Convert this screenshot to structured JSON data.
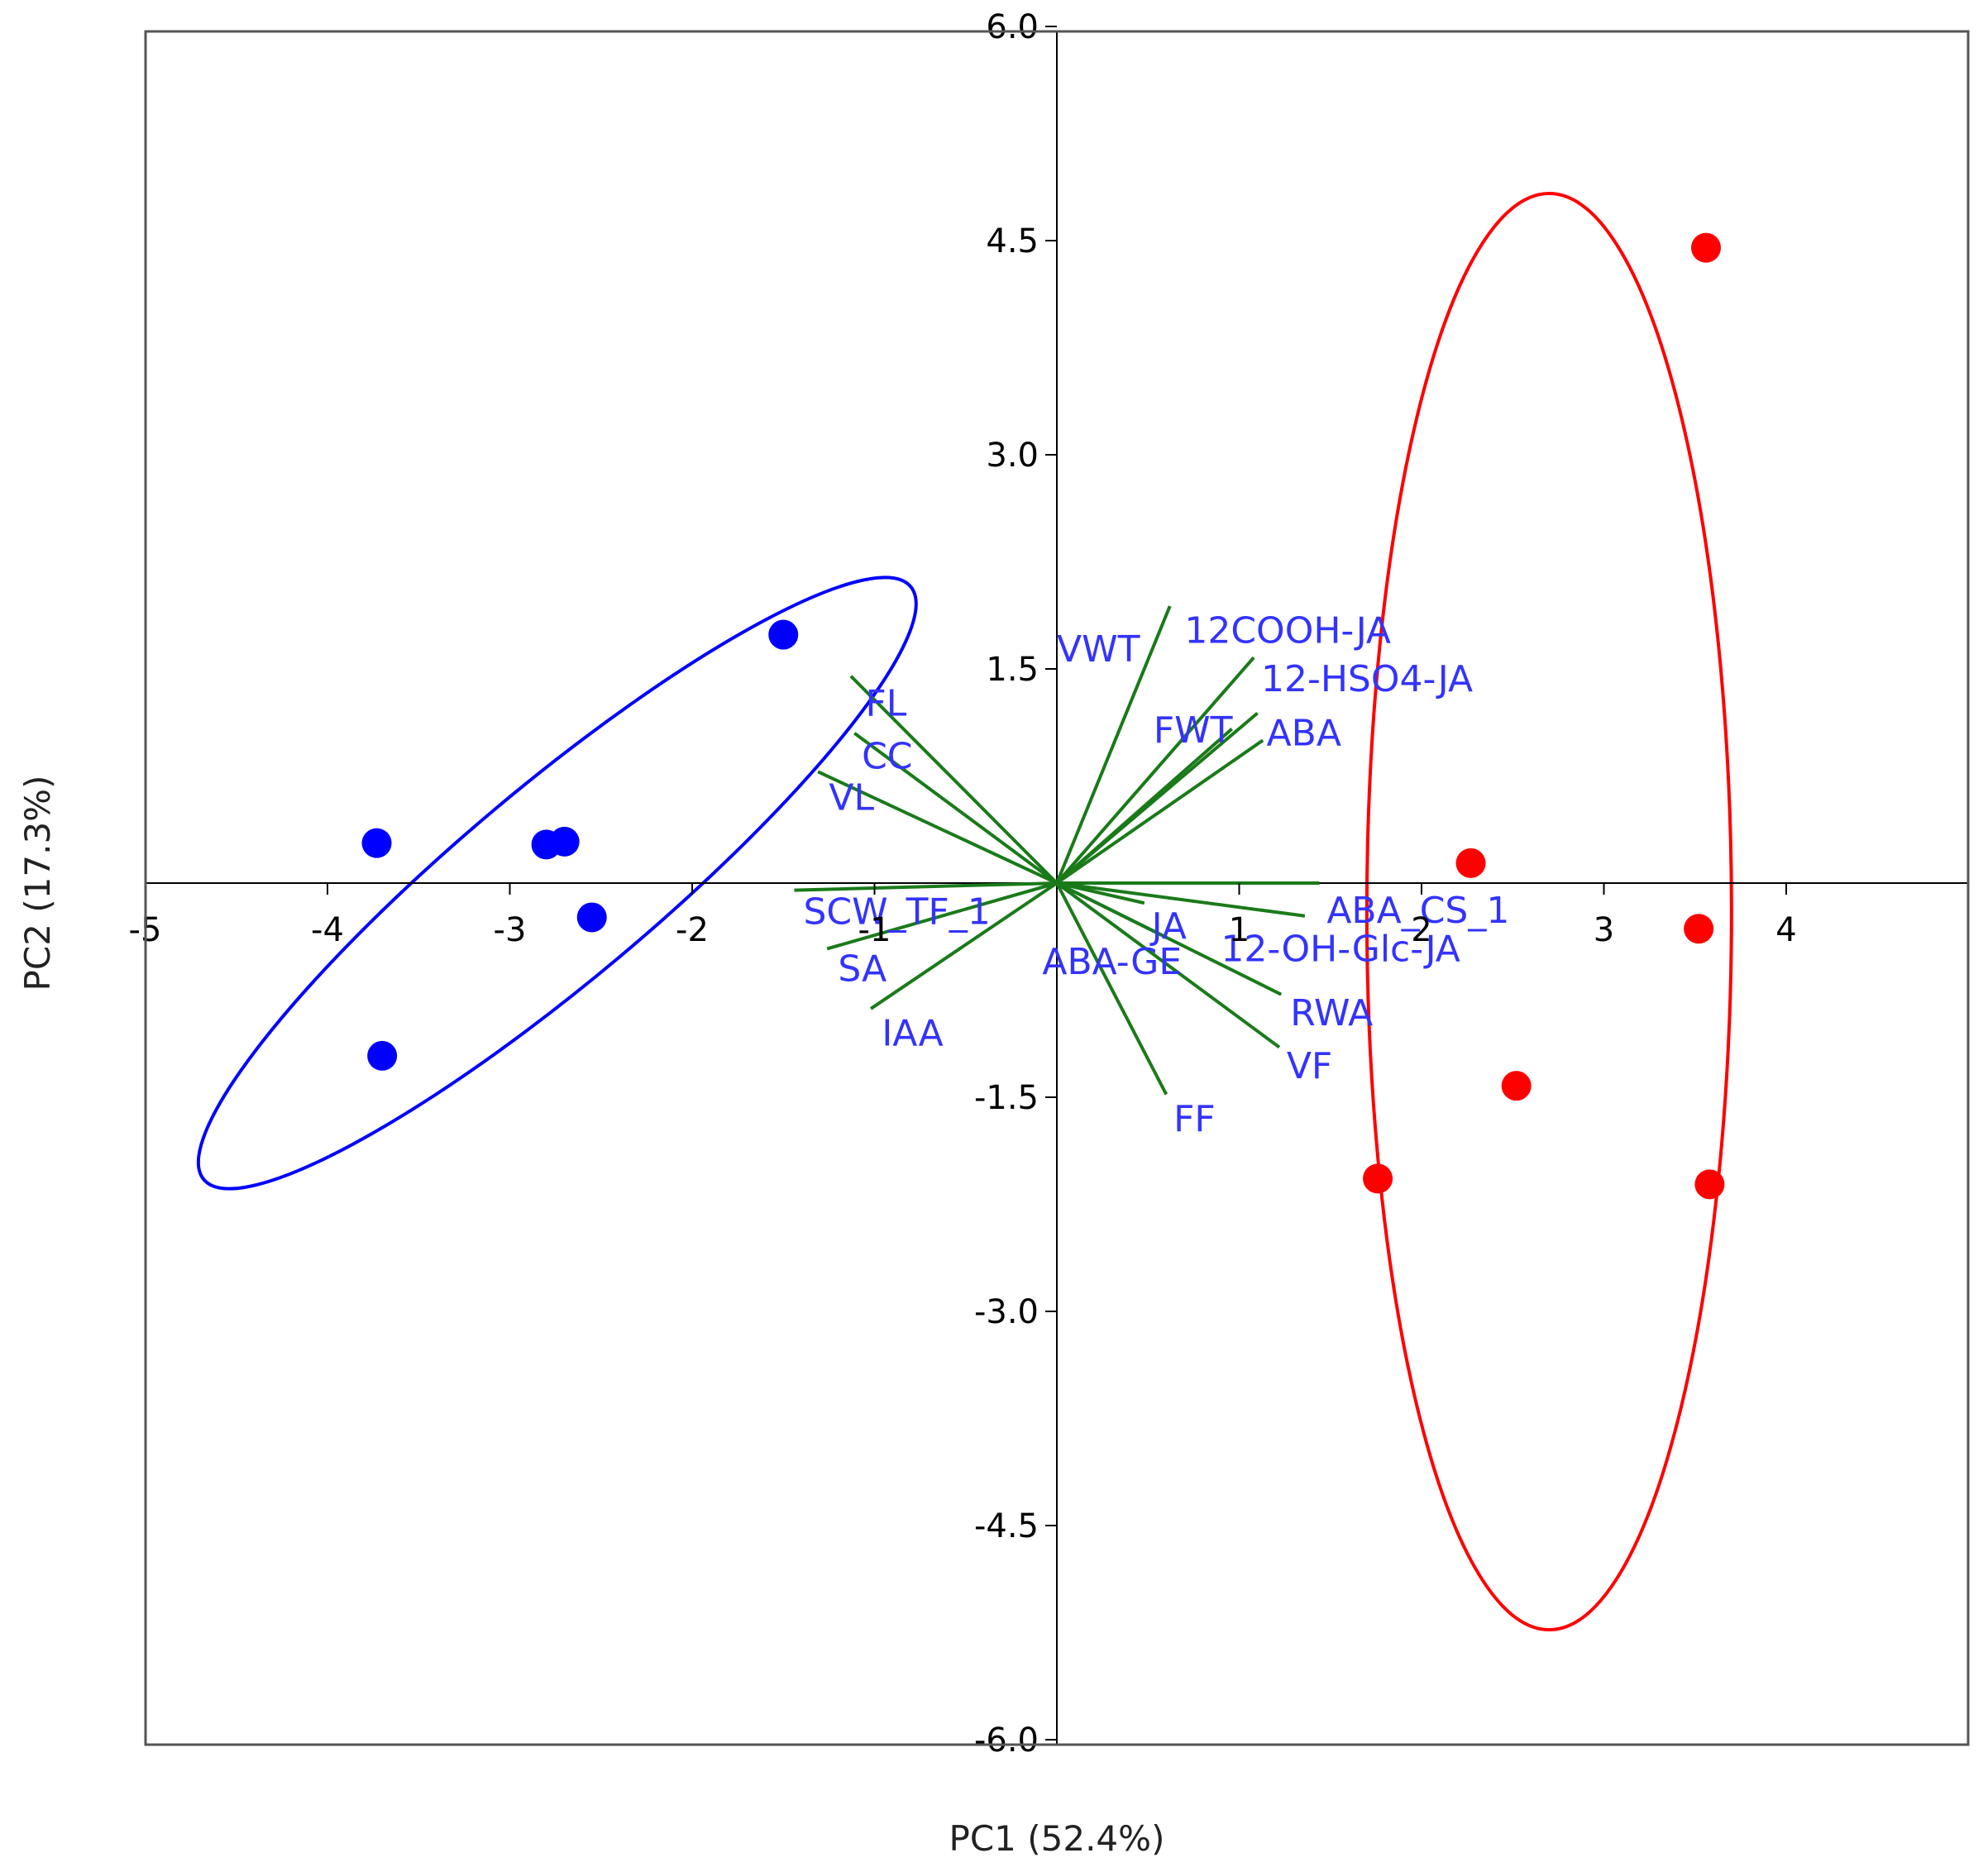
{
  "chart_data": {
    "type": "scatter",
    "title": "",
    "xlabel": "PC1 (52.4%)",
    "ylabel": "PC2 (17.3%)",
    "xlim": [
      -5,
      5
    ],
    "ylim": [
      -6,
      6
    ],
    "x_ticks": [
      "-5",
      "-4",
      "-3",
      "-2",
      "-1",
      "1",
      "2",
      "3",
      "4"
    ],
    "y_ticks": [
      "6.0",
      "4.5",
      "3.0",
      "1.5",
      "-1.5",
      "-3.0",
      "-4.5",
      "-6.0"
    ],
    "grid": false,
    "colors": {
      "group1": "#0000ff",
      "group2": "#ff0000",
      "loadings": "#1a7a1a",
      "labels": "#3333ff",
      "frame": "#555555"
    },
    "series": [
      {
        "color": "#0000ff",
        "points": [
          {
            "x": -1.5,
            "y": 1.74
          },
          {
            "x": -3.73,
            "y": 0.28
          },
          {
            "x": -2.8,
            "y": 0.27
          },
          {
            "x": -2.7,
            "y": 0.29
          },
          {
            "x": -2.55,
            "y": -0.24
          },
          {
            "x": -3.7,
            "y": -1.21
          }
        ],
        "ellipse": {
          "cx": -2.74,
          "cy": 0.0,
          "rx": 2.53,
          "ry": 0.53,
          "angle_deg": 40
        }
      },
      {
        "color": "#ff0000",
        "points": [
          {
            "x": 3.56,
            "y": 4.45
          },
          {
            "x": 2.27,
            "y": 0.14
          },
          {
            "x": 3.52,
            "y": -0.32
          },
          {
            "x": 2.52,
            "y": -1.42
          },
          {
            "x": 1.76,
            "y": -2.07
          },
          {
            "x": 3.58,
            "y": -2.11
          }
        ],
        "ellipse": {
          "cx": 2.7,
          "cy": -0.2,
          "rx": 1.0,
          "ry": 5.03,
          "angle_deg": 0
        }
      }
    ],
    "loadings": [
      {
        "label": "VWT",
        "x": 0.62,
        "y": 1.94,
        "label_x": 0.0,
        "label_y": 1.64
      },
      {
        "label": "12COOH-JA",
        "x": 1.08,
        "y": 1.58,
        "label_x": 0.7,
        "label_y": 1.77
      },
      {
        "label": "12-HSO4-JA",
        "x": 1.1,
        "y": 1.19,
        "label_x": 1.12,
        "label_y": 1.43
      },
      {
        "label": "FWT",
        "x": 0.96,
        "y": 1.08,
        "label_x": 0.53,
        "label_y": 1.07
      },
      {
        "label": "ABA",
        "x": 1.13,
        "y": 1.0,
        "label_x": 1.15,
        "label_y": 1.05
      },
      {
        "label": "FL",
        "x": -1.13,
        "y": 1.45,
        "label_x": -1.05,
        "label_y": 1.26
      },
      {
        "label": "CC",
        "x": -1.11,
        "y": 1.05,
        "label_x": -1.07,
        "label_y": 0.89
      },
      {
        "label": "VL",
        "x": -1.31,
        "y": 0.78,
        "label_x": -1.25,
        "label_y": 0.6
      },
      {
        "label": "SCW_TF_1",
        "x": -1.44,
        "y": -0.05,
        "label_x": -1.39,
        "label_y": -0.2
      },
      {
        "label": "SA",
        "x": -1.26,
        "y": -0.46,
        "label_x": -1.2,
        "label_y": -0.6
      },
      {
        "label": "IAA",
        "x": -1.02,
        "y": -0.88,
        "label_x": -0.96,
        "label_y": -1.05
      },
      {
        "label": "ABA_CS_1",
        "x": 1.44,
        "y": 0.0,
        "label_x": 1.48,
        "label_y": -0.19
      },
      {
        "label": "JA",
        "x": 0.48,
        "y": -0.14,
        "label_x": 0.52,
        "label_y": -0.3
      },
      {
        "label": "ABA-GE",
        "x": 0.6,
        "y": -0.38,
        "label_x": -0.08,
        "label_y": -0.55
      },
      {
        "label": "12-OH-Glc-JA",
        "x": 1.36,
        "y": -0.23,
        "label_x": 0.9,
        "label_y": -0.46
      },
      {
        "label": "RWA",
        "x": 1.23,
        "y": -0.78,
        "label_x": 1.28,
        "label_y": -0.91
      },
      {
        "label": "VF",
        "x": 1.22,
        "y": -1.15,
        "label_x": 1.26,
        "label_y": -1.28
      },
      {
        "label": "FF",
        "x": 0.6,
        "y": -1.48,
        "label_x": 0.64,
        "label_y": -1.65
      }
    ]
  }
}
